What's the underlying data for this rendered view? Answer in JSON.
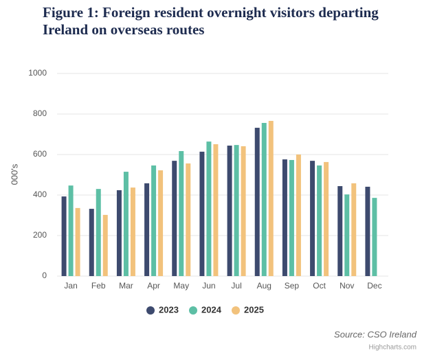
{
  "chart_data": {
    "type": "bar",
    "title": "Figure 1: Foreign resident overnight visitors departing Ireland on overseas routes",
    "y_label": "000's",
    "categories": [
      "Jan",
      "Feb",
      "Mar",
      "Apr",
      "May",
      "Jun",
      "Jul",
      "Aug",
      "Sep",
      "Oct",
      "Nov",
      "Dec"
    ],
    "series": [
      {
        "name": "2023",
        "color": "#3d4a6e",
        "values": [
          393,
          332,
          424,
          458,
          569,
          614,
          644,
          732,
          576,
          569,
          444,
          441
        ]
      },
      {
        "name": "2024",
        "color": "#5dbfa5",
        "values": [
          447,
          430,
          515,
          546,
          617,
          664,
          647,
          756,
          573,
          546,
          403,
          386
        ]
      },
      {
        "name": "2025",
        "color": "#f2c27c",
        "values": [
          336,
          302,
          437,
          522,
          556,
          651,
          641,
          766,
          600,
          563,
          458,
          null
        ]
      }
    ],
    "ylim": [
      0,
      1000
    ],
    "yticks": [
      0,
      200,
      400,
      600,
      800,
      1000
    ],
    "grid": true,
    "legend": "bottom",
    "source": "Source: CSO Ireland",
    "credits": "Highcharts.com"
  }
}
